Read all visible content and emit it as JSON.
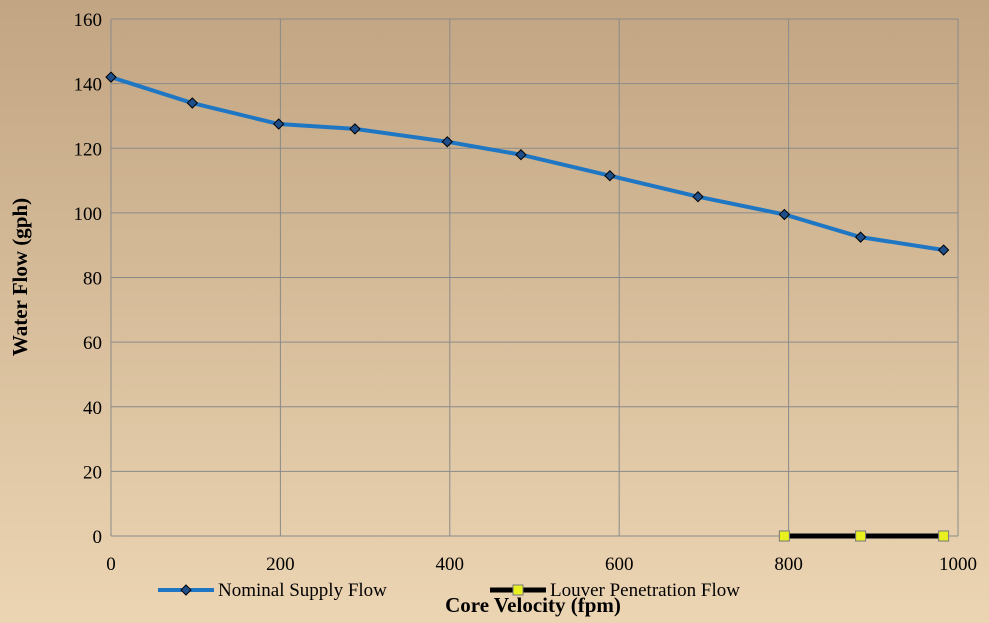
{
  "chart_data": {
    "type": "line",
    "xlabel": "Core Velocity (fpm)",
    "ylabel": "Water Flow (gph)",
    "xlim": [
      0,
      1000
    ],
    "xticks": [
      0,
      200,
      400,
      600,
      800,
      1000
    ],
    "ylim": [
      0,
      160
    ],
    "yticks": [
      0,
      20,
      40,
      60,
      80,
      100,
      120,
      140,
      160
    ],
    "grid": true,
    "legend": "bottom",
    "series": [
      {
        "name": "Nominal Supply Flow",
        "color": "#1f77c4",
        "marker": "#1f4f8a",
        "x": [
          0,
          96,
          198,
          288,
          397,
          484,
          589,
          693,
          795,
          885,
          983
        ],
        "values": [
          142,
          134,
          127.5,
          126,
          122,
          118,
          111.5,
          105,
          99.5,
          92.5,
          88.5
        ]
      },
      {
        "name": "Louver Penetration Flow",
        "color": "#000000",
        "marker": "#e8f020",
        "x": [
          795,
          885,
          983
        ],
        "values": [
          0,
          0,
          0
        ]
      }
    ]
  }
}
